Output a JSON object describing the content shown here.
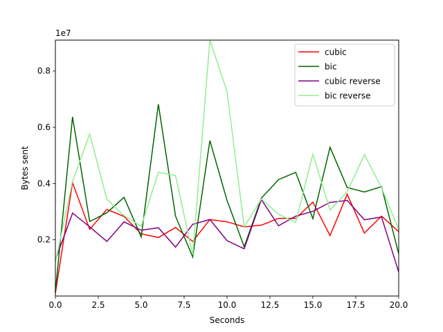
{
  "chart_data": {
    "type": "line",
    "xlabel": "Seconds",
    "ylabel": "Bytes sent",
    "y_scale_label": "1e7",
    "xlim": [
      0,
      20
    ],
    "ylim": [
      0,
      9100000
    ],
    "x_ticks": [
      0,
      2.5,
      5,
      7.5,
      10,
      12.5,
      15,
      17.5,
      20
    ],
    "x_tick_labels": [
      "0.0",
      "2.5",
      "5.0",
      "7.5",
      "10.0",
      "12.5",
      "15.0",
      "17.5",
      "20.0"
    ],
    "y_ticks": [
      2000000,
      4000000,
      6000000,
      8000000
    ],
    "y_tick_labels": [
      "0.2",
      "0.4",
      "0.6",
      "0.8"
    ],
    "grid": false,
    "legend_position": "top-right",
    "x": [
      0,
      1,
      2,
      3,
      4,
      5,
      6,
      7,
      8,
      9,
      10,
      11,
      12,
      13,
      14,
      15,
      16,
      17,
      18,
      19,
      20
    ],
    "series": [
      {
        "name": "cubic",
        "color": "#ff0000",
        "values": [
          100000,
          4030000,
          2370000,
          3080000,
          2830000,
          2210000,
          2080000,
          2440000,
          1940000,
          2720000,
          2640000,
          2460000,
          2520000,
          2760000,
          2760000,
          3340000,
          2150000,
          3620000,
          2240000,
          2840000,
          2290000
        ]
      },
      {
        "name": "bic",
        "color": "#006400",
        "values": [
          150000,
          6370000,
          2650000,
          2960000,
          3510000,
          2100000,
          6820000,
          2840000,
          1390000,
          5530000,
          3400000,
          1750000,
          3480000,
          4140000,
          4400000,
          2750000,
          5290000,
          3860000,
          3700000,
          3890000,
          1500000
        ]
      },
      {
        "name": "cubic reverse",
        "color": "#800080",
        "values": [
          1280000,
          2950000,
          2460000,
          1940000,
          2640000,
          2340000,
          2430000,
          1740000,
          2550000,
          2720000,
          1970000,
          1680000,
          3430000,
          2500000,
          2840000,
          3010000,
          3330000,
          3400000,
          2710000,
          2810000,
          850000
        ]
      },
      {
        "name": "bic reverse",
        "color": "#90ee90",
        "values": [
          1200000,
          4080000,
          5760000,
          3440000,
          2860000,
          2480000,
          4400000,
          4290000,
          1460000,
          9100000,
          7270000,
          2460000,
          3450000,
          2910000,
          2620000,
          5050000,
          3050000,
          3710000,
          5030000,
          3850000,
          2370000
        ]
      }
    ]
  }
}
